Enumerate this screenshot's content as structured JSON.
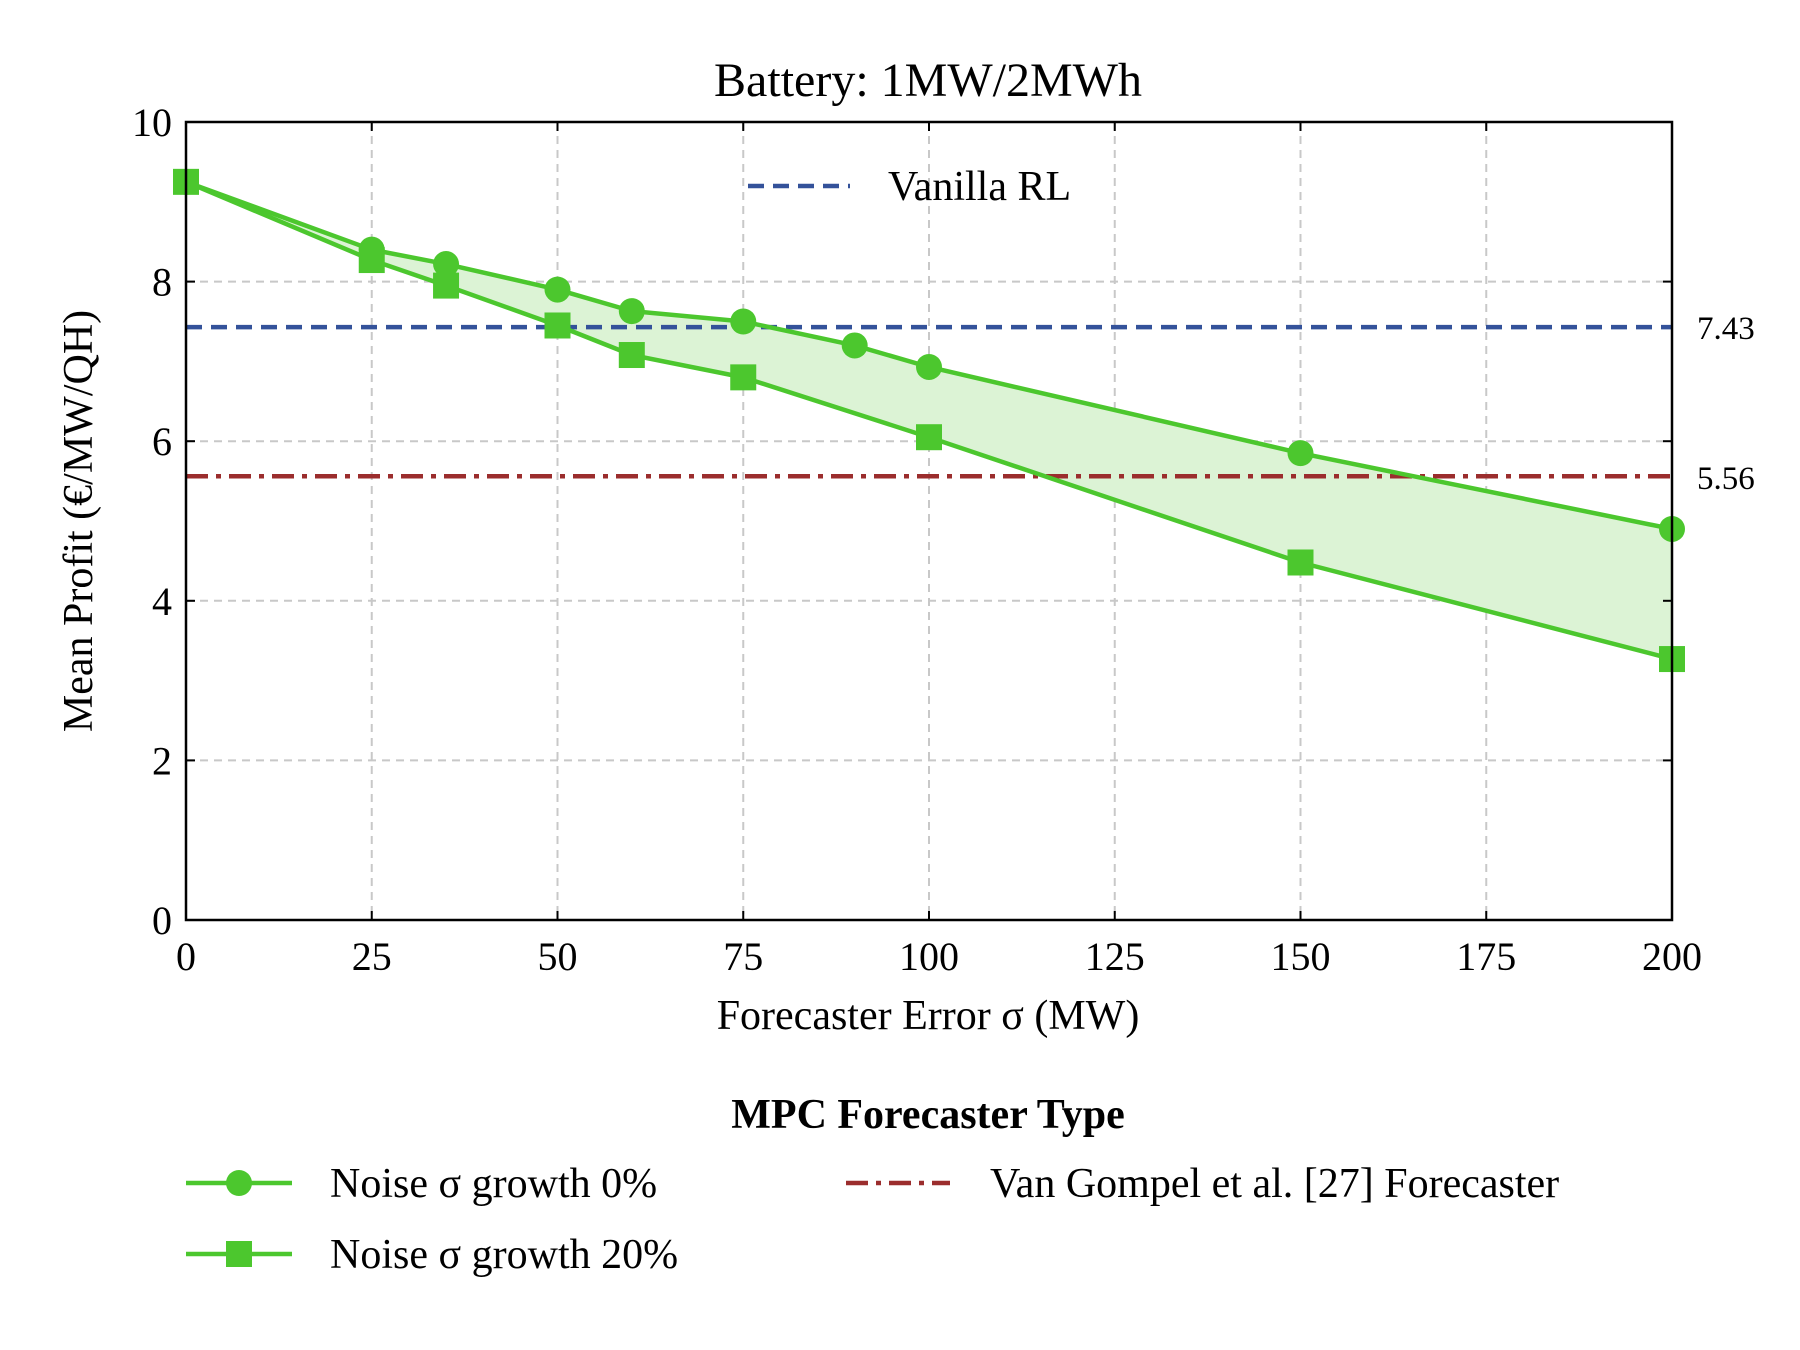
{
  "chart_data": {
    "type": "line",
    "title": "Battery: 1MW/2MWh",
    "xlabel": "Forecaster Error σ (MW)",
    "ylabel": "Mean Profit (€/MW/QH)",
    "xlim": [
      0,
      200
    ],
    "ylim": [
      0,
      10
    ],
    "xticks": [
      0,
      25,
      50,
      75,
      100,
      125,
      150,
      175,
      200
    ],
    "yticks": [
      0,
      2,
      4,
      6,
      8,
      10
    ],
    "grid": true,
    "series": [
      {
        "name": "Noise σ growth 0%",
        "marker": "circle",
        "color": "#4cc72e",
        "x": [
          0,
          25,
          35,
          50,
          60,
          75,
          90,
          100,
          150,
          200
        ],
        "values": [
          9.25,
          8.4,
          8.22,
          7.9,
          7.63,
          7.5,
          7.2,
          6.93,
          5.85,
          4.9
        ]
      },
      {
        "name": "Noise σ growth 20%",
        "marker": "square",
        "color": "#4cc72e",
        "x": [
          0,
          25,
          35,
          50,
          60,
          75,
          100,
          150,
          200
        ],
        "values": [
          9.25,
          8.27,
          7.95,
          7.45,
          7.08,
          6.8,
          6.05,
          4.48,
          3.27
        ]
      }
    ],
    "fill_between": {
      "color": "#dcf3d5",
      "between": [
        "Noise σ growth 0%",
        "Noise σ growth 20%"
      ]
    },
    "reference_lines": [
      {
        "name": "Vanilla RL",
        "value": 7.43,
        "label": "7.43",
        "style": "dashed",
        "color": "#34529a"
      },
      {
        "name": "Van Gompel et al. [27] Forecaster",
        "value": 5.56,
        "label": "5.56",
        "style": "dashdot",
        "color": "#9b2d2d"
      }
    ],
    "legend_top": {
      "position": "upper-center",
      "entries": [
        "Vanilla RL"
      ]
    },
    "legend_bottom": {
      "position": "below",
      "title": "MPC Forecaster Type",
      "entries": [
        "Noise σ growth 0%",
        "Noise σ growth 20%",
        "Van Gompel et al. [27] Forecaster"
      ]
    }
  }
}
